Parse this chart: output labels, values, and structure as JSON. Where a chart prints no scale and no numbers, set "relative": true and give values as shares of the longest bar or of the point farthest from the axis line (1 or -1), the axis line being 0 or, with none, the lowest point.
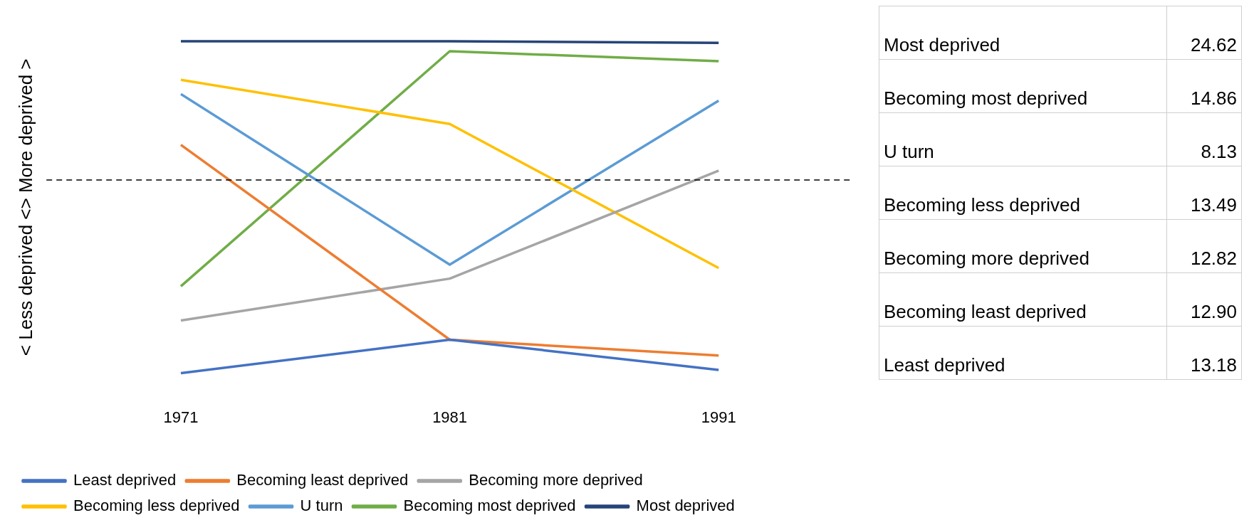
{
  "chart_data": [
    {
      "type": "line",
      "relative": true,
      "ylabel": "< Less deprived <> More deprived >",
      "categories": [
        "1971",
        "1981",
        "1991"
      ],
      "legend": "bottom",
      "grid": false,
      "marker": "none",
      "line_style": "solid",
      "series": [
        {
          "name": "Least deprived",
          "color": "#4472c4",
          "values": [
            0,
            0.101,
            0.01
          ]
        },
        {
          "name": "Becoming least deprived",
          "color": "#ed7d31",
          "values": [
            0.688,
            0.101,
            0.053
          ]
        },
        {
          "name": "Becoming more deprived",
          "color": "#a5a5a5",
          "values": [
            0.159,
            0.285,
            0.61
          ]
        },
        {
          "name": "Becoming less deprived",
          "color": "#ffc000",
          "values": [
            0.884,
            0.751,
            0.317
          ]
        },
        {
          "name": "U turn",
          "color": "#5b9bd5",
          "values": [
            0.841,
            0.327,
            0.821
          ]
        },
        {
          "name": "Becoming most deprived",
          "color": "#70ad47",
          "values": [
            0.262,
            0.97,
            0.94
          ]
        },
        {
          "name": "Most deprived",
          "color": "#264478",
          "values": [
            1,
            1,
            0.995
          ]
        }
      ],
      "ref_lines": [
        {
          "axis": "y",
          "value": 0.582,
          "color": "#000000",
          "line_style": "dashed"
        }
      ]
    },
    {
      "type": "other",
      "categories": [
        "Most deprived",
        "Becoming most deprived",
        "U turn",
        "Becoming less deprived",
        "Becoming more deprived",
        "Becoming least deprived",
        "Least deprived"
      ],
      "value_labels": [
        "24.62",
        "14.86",
        "8.13",
        "13.49",
        "12.82",
        "12.90",
        "13.18"
      ]
    }
  ]
}
